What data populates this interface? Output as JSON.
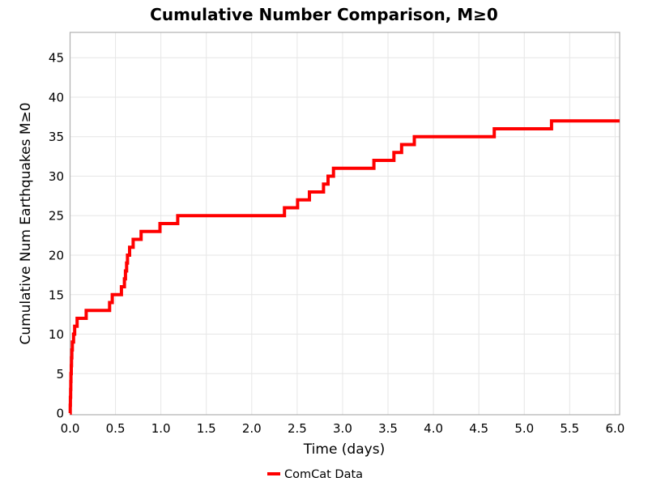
{
  "chart_data": {
    "type": "line",
    "line_style": "step-post",
    "title": "Cumulative Number Comparison, M≥0",
    "xlabel": "Time (days)",
    "ylabel": "Cumulative Num Earthquakes M≥0",
    "legend": [
      {
        "label": "ComCat Data",
        "color": "#ff0000"
      }
    ],
    "legend_position": "bottom-center",
    "grid": true,
    "xlim": [
      0,
      6.05
    ],
    "ylim": [
      -0.2,
      48.2
    ],
    "x_ticks": [
      0,
      0.5,
      1.0,
      1.5,
      2.0,
      2.5,
      3.0,
      3.5,
      4.0,
      4.5,
      5.0,
      5.5,
      6.0
    ],
    "x_tick_labels": [
      "0.0",
      "0.5",
      "1.0",
      "1.5",
      "2.0",
      "2.5",
      "3.0",
      "3.5",
      "4.0",
      "4.5",
      "5.0",
      "5.5",
      "6.0"
    ],
    "y_ticks": [
      0,
      5,
      10,
      15,
      20,
      25,
      30,
      35,
      40,
      45
    ],
    "y_tick_labels": [
      "0",
      "5",
      "10",
      "15",
      "20",
      "25",
      "30",
      "35",
      "40",
      "45"
    ],
    "series": [
      {
        "name": "ComCat Data",
        "color": "#ff0000",
        "line_width": 4,
        "points": [
          [
            0.0,
            0
          ],
          [
            0.002,
            1
          ],
          [
            0.004,
            2
          ],
          [
            0.006,
            3
          ],
          [
            0.008,
            4
          ],
          [
            0.01,
            5
          ],
          [
            0.013,
            6
          ],
          [
            0.016,
            7
          ],
          [
            0.02,
            8
          ],
          [
            0.025,
            9
          ],
          [
            0.038,
            10
          ],
          [
            0.051,
            11
          ],
          [
            0.078,
            12
          ],
          [
            0.177,
            13
          ],
          [
            0.435,
            14
          ],
          [
            0.465,
            15
          ],
          [
            0.565,
            16
          ],
          [
            0.598,
            17
          ],
          [
            0.61,
            18
          ],
          [
            0.622,
            19
          ],
          [
            0.632,
            20
          ],
          [
            0.655,
            21
          ],
          [
            0.695,
            22
          ],
          [
            0.782,
            23
          ],
          [
            0.99,
            24
          ],
          [
            1.185,
            25
          ],
          [
            2.36,
            26
          ],
          [
            2.505,
            27
          ],
          [
            2.635,
            28
          ],
          [
            2.79,
            29
          ],
          [
            2.84,
            30
          ],
          [
            2.9,
            31
          ],
          [
            3.345,
            32
          ],
          [
            3.565,
            33
          ],
          [
            3.65,
            34
          ],
          [
            3.79,
            35
          ],
          [
            4.67,
            36
          ],
          [
            5.3,
            37
          ]
        ],
        "final_value": 37
      }
    ],
    "colors": {
      "series_red": "#ff0000",
      "grid_line": "#e6e6e6",
      "plot_frame": "#b0b0b0",
      "text": "#000000",
      "background": "#ffffff"
    }
  }
}
